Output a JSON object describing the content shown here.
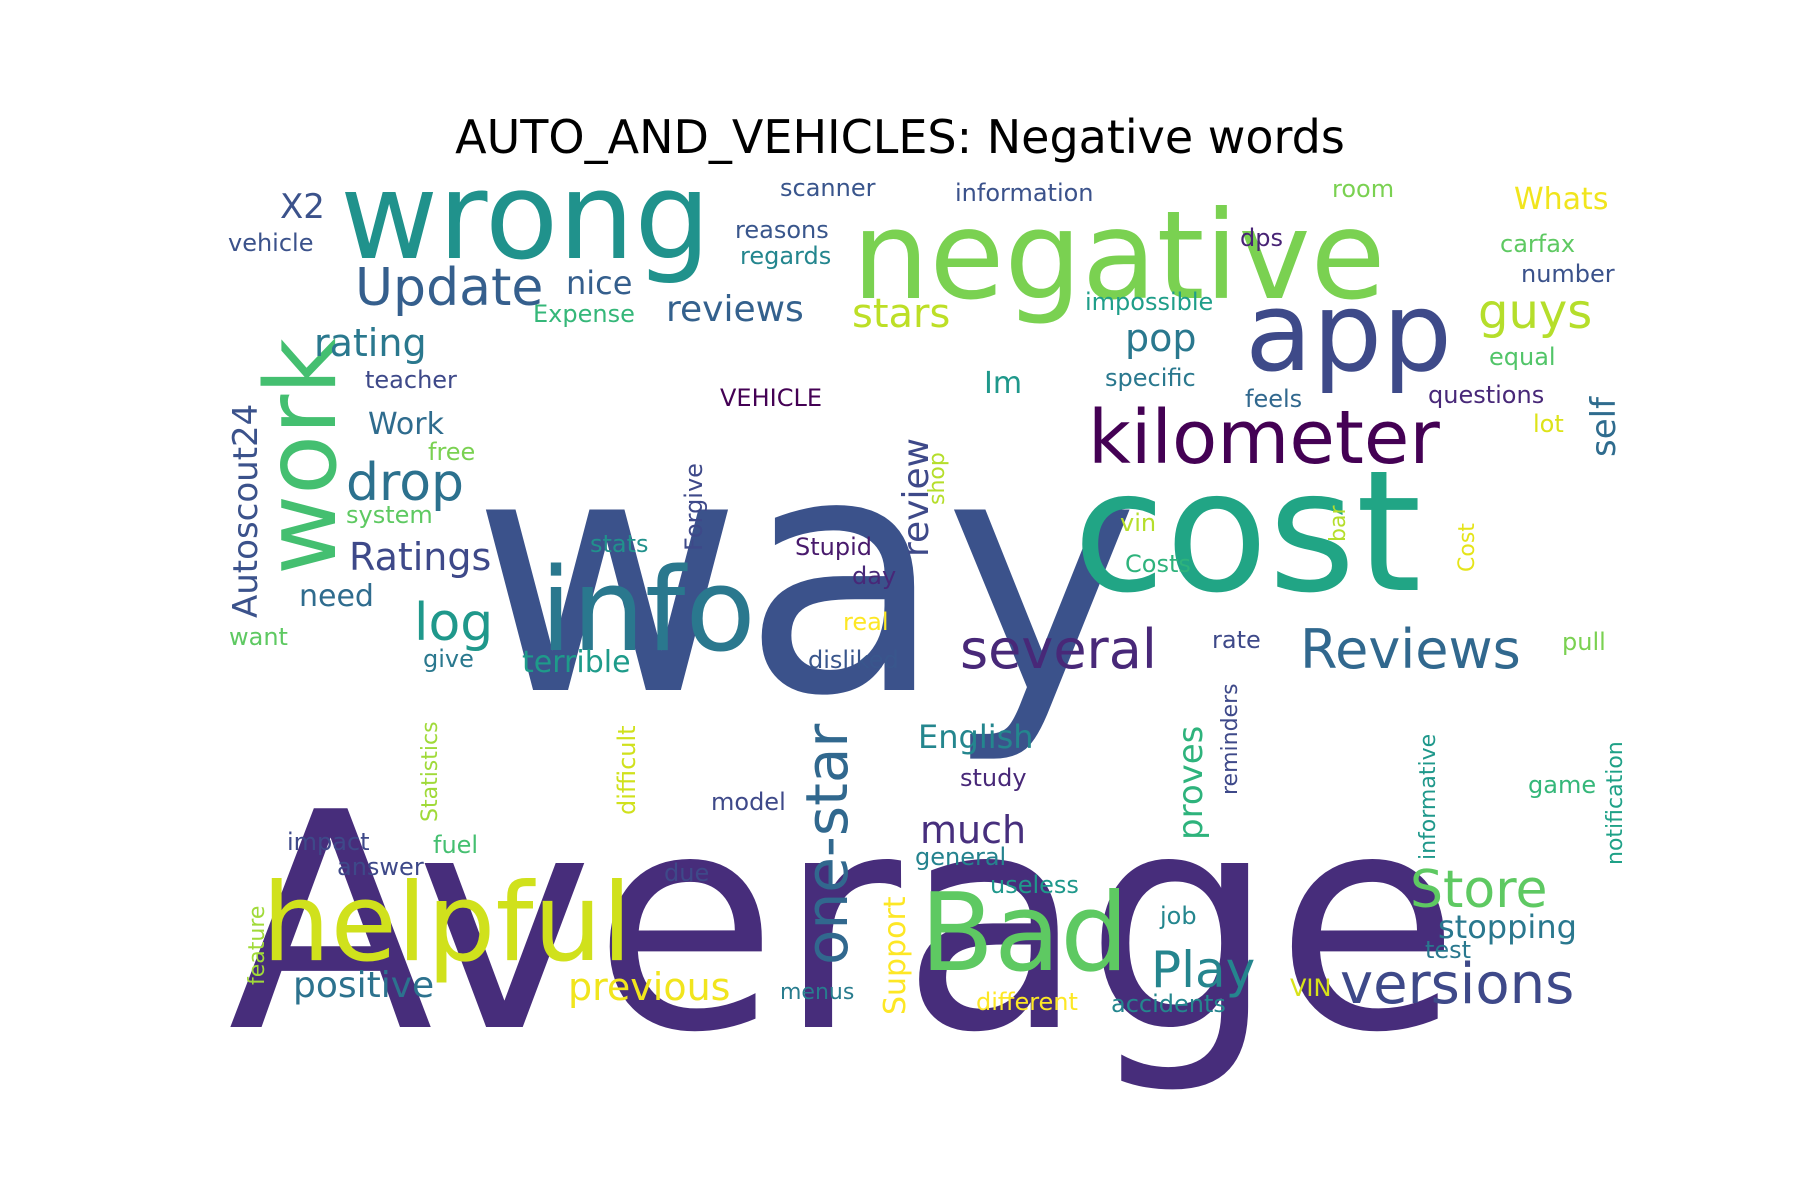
{
  "title": "AUTO_AND_VEHICLES: Negative words",
  "colormap": "viridis",
  "words": [
    {
      "text": "Average",
      "color": "#472d7b"
    },
    {
      "text": "way",
      "color": "#3b528b"
    },
    {
      "text": "cost",
      "color": "#21a585"
    },
    {
      "text": "negative",
      "color": "#7ad151"
    },
    {
      "text": "wrong",
      "color": "#20928c"
    },
    {
      "text": "app",
      "color": "#3e4a89"
    },
    {
      "text": "work",
      "color": "#44bf70"
    },
    {
      "text": "info",
      "color": "#2a788e"
    },
    {
      "text": "helpful",
      "color": "#d0e11c"
    },
    {
      "text": "Bad",
      "color": "#5ec962"
    },
    {
      "text": "kilometer",
      "color": "#440154"
    },
    {
      "text": "Update",
      "color": "#355f8d"
    },
    {
      "text": "several",
      "color": "#482878"
    },
    {
      "text": "Reviews",
      "color": "#31688e"
    },
    {
      "text": "one-star",
      "color": "#31688e"
    },
    {
      "text": "guys",
      "color": "#b5de2b"
    },
    {
      "text": "versions",
      "color": "#3e4989"
    },
    {
      "text": "Store",
      "color": "#5ec962"
    },
    {
      "text": "Play",
      "color": "#25858e"
    },
    {
      "text": "log",
      "color": "#1f988b"
    },
    {
      "text": "drop",
      "color": "#2c718e"
    },
    {
      "text": "Autoscout24",
      "color": "#3b528b"
    },
    {
      "text": "review",
      "color": "#3e4989"
    },
    {
      "text": "previous",
      "color": "#f1e51d"
    },
    {
      "text": "positive",
      "color": "#2c728e"
    },
    {
      "text": "stars",
      "color": "#bddf26"
    },
    {
      "text": "reviews",
      "color": "#34618d"
    },
    {
      "text": "rating",
      "color": "#2a788e"
    },
    {
      "text": "Ratings",
      "color": "#3e4989"
    },
    {
      "text": "pop",
      "color": "#2a788e"
    },
    {
      "text": "self",
      "color": "#2f6c8e"
    },
    {
      "text": "much",
      "color": "#472f7d"
    },
    {
      "text": "English",
      "color": "#24868e"
    },
    {
      "text": "proves",
      "color": "#2eb37c"
    },
    {
      "text": "stopping",
      "color": "#2a788e"
    },
    {
      "text": "Support",
      "color": "#fde725"
    },
    {
      "text": "X2",
      "color": "#3b528b"
    },
    {
      "text": "nice",
      "color": "#355f8d"
    },
    {
      "text": "Work",
      "color": "#2f6c8e"
    },
    {
      "text": "terrible",
      "color": "#1e9b8a"
    },
    {
      "text": "need",
      "color": "#2f6c8e"
    },
    {
      "text": "Im",
      "color": "#1f988b"
    },
    {
      "text": "Whats",
      "color": "#f1e51d"
    },
    {
      "text": "scanner",
      "color": "#39558c"
    },
    {
      "text": "information",
      "color": "#3b528b"
    },
    {
      "text": "reasons",
      "color": "#39568c"
    },
    {
      "text": "regards",
      "color": "#24868e"
    },
    {
      "text": "room",
      "color": "#7ad151"
    },
    {
      "text": "dps",
      "color": "#482475"
    },
    {
      "text": "carfax",
      "color": "#5ec962"
    },
    {
      "text": "number",
      "color": "#3b528b"
    },
    {
      "text": "vehicle",
      "color": "#3b528b"
    },
    {
      "text": "Expense",
      "color": "#35b779"
    },
    {
      "text": "impossible",
      "color": "#1f9e89"
    },
    {
      "text": "equal",
      "color": "#52c569"
    },
    {
      "text": "teacher",
      "color": "#3e4989"
    },
    {
      "text": "specific",
      "color": "#2a788e"
    },
    {
      "text": "questions",
      "color": "#482878"
    },
    {
      "text": "VEHICLE",
      "color": "#440154"
    },
    {
      "text": "feels",
      "color": "#31688e"
    },
    {
      "text": "lot",
      "color": "#dde318"
    },
    {
      "text": "free",
      "color": "#7ad151"
    },
    {
      "text": "shop",
      "color": "#b5de2b"
    },
    {
      "text": "system",
      "color": "#5ec962"
    },
    {
      "text": "stats",
      "color": "#21918c"
    },
    {
      "text": "Forgive",
      "color": "#3e4989"
    },
    {
      "text": "Stupid",
      "color": "#481a6c"
    },
    {
      "text": "vin",
      "color": "#b5de2b"
    },
    {
      "text": "Costs",
      "color": "#2eb37c"
    },
    {
      "text": "bar",
      "color": "#b5de2b"
    },
    {
      "text": "Cost",
      "color": "#e5e419"
    },
    {
      "text": "day",
      "color": "#482878"
    },
    {
      "text": "real",
      "color": "#fde725"
    },
    {
      "text": "want",
      "color": "#5ec962"
    },
    {
      "text": "give",
      "color": "#2a788e"
    },
    {
      "text": "disliked",
      "color": "#39568c"
    },
    {
      "text": "rate",
      "color": "#3e4989"
    },
    {
      "text": "pull",
      "color": "#7ad151"
    },
    {
      "text": "Statistics",
      "color": "#a0da39"
    },
    {
      "text": "difficult",
      "color": "#d0e11c"
    },
    {
      "text": "reminders",
      "color": "#3e4989"
    },
    {
      "text": "informative",
      "color": "#1f988b"
    },
    {
      "text": "notification",
      "color": "#1fa187"
    },
    {
      "text": "study",
      "color": "#482878"
    },
    {
      "text": "game",
      "color": "#35b779"
    },
    {
      "text": "model",
      "color": "#3e4989"
    },
    {
      "text": "impact",
      "color": "#3e4989"
    },
    {
      "text": "fuel",
      "color": "#44bf70"
    },
    {
      "text": "answer",
      "color": "#3e4989"
    },
    {
      "text": "due",
      "color": "#3e4989"
    },
    {
      "text": "general",
      "color": "#25838e"
    },
    {
      "text": "useless",
      "color": "#1f988b"
    },
    {
      "text": "feature",
      "color": "#a0da39"
    },
    {
      "text": "job",
      "color": "#24868e"
    },
    {
      "text": "test",
      "color": "#29788e"
    },
    {
      "text": "menus",
      "color": "#287c8e"
    },
    {
      "text": "different",
      "color": "#fde725"
    },
    {
      "text": "accidents",
      "color": "#24868e"
    },
    {
      "text": "VIN",
      "color": "#d8e219"
    }
  ]
}
